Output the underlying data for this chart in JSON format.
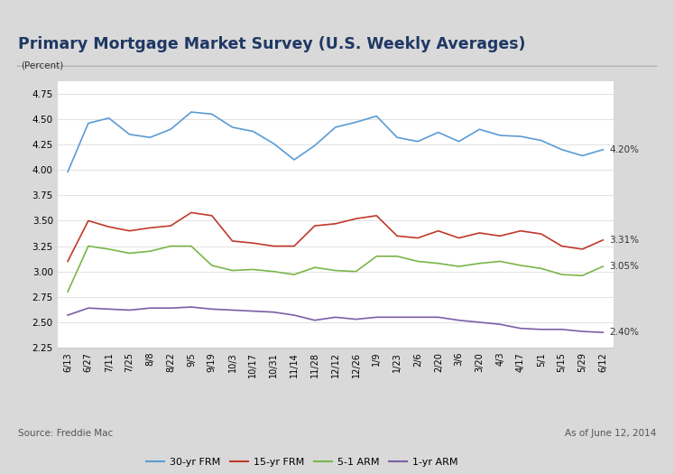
{
  "title": "Primary Mortgage Market Survey (U.S. Weekly Averages)",
  "ylabel": "(Percent)",
  "ylim": [
    2.25,
    4.875
  ],
  "yticks": [
    2.25,
    2.5,
    2.75,
    3.0,
    3.25,
    3.5,
    3.75,
    4.0,
    4.25,
    4.5,
    4.75
  ],
  "source_text": "Source: Freddie Mac",
  "date_text": "As of June 12, 2014",
  "outer_bg": "#d9d9d9",
  "inner_bg": "#f0f0f0",
  "chart_bg": "#ffffff",
  "title_color": "#1f3864",
  "x_labels": [
    "6/13",
    "6/27",
    "7/11",
    "7/25",
    "8/8",
    "8/22",
    "9/5",
    "9/19",
    "10/3",
    "10/17",
    "10/31",
    "11/14",
    "11/28",
    "12/12",
    "12/26",
    "1/9",
    "1/23",
    "2/6",
    "2/20",
    "3/6",
    "3/20",
    "4/3",
    "4/17",
    "5/1",
    "5/15",
    "5/29",
    "6/12"
  ],
  "series": {
    "30-yr FRM": {
      "color": "#5b9bd5",
      "end_label": "4.20%",
      "values": [
        3.98,
        4.46,
        4.51,
        4.35,
        4.32,
        4.4,
        4.57,
        4.55,
        4.42,
        4.38,
        4.26,
        4.1,
        4.24,
        4.42,
        4.47,
        4.53,
        4.32,
        4.28,
        4.37,
        4.28,
        4.4,
        4.34,
        4.33,
        4.29,
        4.2,
        4.14,
        4.2
      ]
    },
    "15-yr FRM": {
      "color": "#c0392b",
      "end_label": "3.31%",
      "values": [
        3.1,
        3.5,
        3.44,
        3.4,
        3.43,
        3.45,
        3.58,
        3.55,
        3.3,
        3.28,
        3.25,
        3.25,
        3.45,
        3.47,
        3.52,
        3.55,
        3.35,
        3.33,
        3.4,
        3.33,
        3.38,
        3.35,
        3.4,
        3.37,
        3.25,
        3.22,
        3.31
      ]
    },
    "5-1 ARM": {
      "color": "#7ab648",
      "end_label": "3.05%",
      "values": [
        2.8,
        3.25,
        3.22,
        3.18,
        3.2,
        3.25,
        3.25,
        3.06,
        3.01,
        3.02,
        3.0,
        2.97,
        3.04,
        3.01,
        3.0,
        3.15,
        3.15,
        3.1,
        3.08,
        3.05,
        3.08,
        3.1,
        3.06,
        3.03,
        2.97,
        2.96,
        3.05
      ]
    },
    "1-yr ARM": {
      "color": "#7b5ea7",
      "end_label": "2.40%",
      "values": [
        2.57,
        2.64,
        2.63,
        2.62,
        2.64,
        2.64,
        2.65,
        2.63,
        2.62,
        2.61,
        2.6,
        2.57,
        2.52,
        2.55,
        2.53,
        2.55,
        2.55,
        2.55,
        2.55,
        2.52,
        2.5,
        2.48,
        2.44,
        2.43,
        2.43,
        2.41,
        2.4
      ]
    }
  }
}
